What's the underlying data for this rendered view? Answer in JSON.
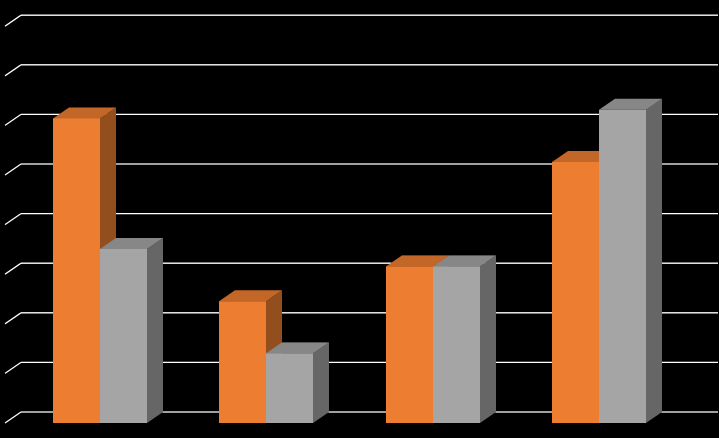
{
  "chart_data": {
    "type": "bar",
    "style": "3d-clustered-column",
    "categories": [
      "",
      "",
      "",
      ""
    ],
    "series": [
      {
        "values": [
          7.0,
          2.8,
          3.6,
          6.0
        ],
        "color": "#ED7D31"
      },
      {
        "values": [
          4.0,
          1.6,
          3.6,
          7.2
        ],
        "color": "#A5A5A5"
      }
    ],
    "ylim": [
      0,
      8.4
    ],
    "grid": true,
    "gridline_color": "#FFFFFF",
    "background": "#000000",
    "title": "",
    "xlabel": "",
    "ylabel": "",
    "legend": "none"
  }
}
